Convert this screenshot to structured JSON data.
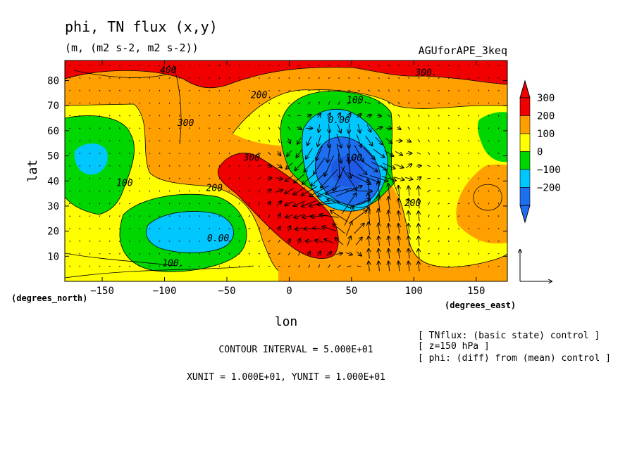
{
  "chart_data": {
    "type": "contour",
    "title": "phi, TN flux (x,y)",
    "subtitle": "(m, (m2 s-2, m2 s-2))",
    "experiment": "AGUforAPE_3keq",
    "xlabel": "lon",
    "ylabel": "lat",
    "x_unit": "(degrees_east)",
    "y_unit": "(degrees_north)",
    "xlim": [
      -180,
      175
    ],
    "ylim": [
      0,
      88
    ],
    "x_ticks": [
      -150,
      -100,
      -50,
      0,
      50,
      100,
      150
    ],
    "x_tick_labels": [
      "−150",
      "−100",
      "−50",
      "0",
      "50",
      "100",
      "150"
    ],
    "y_ticks": [
      10,
      20,
      30,
      40,
      50,
      60,
      70,
      80
    ],
    "y_tick_labels": [
      "10",
      "20",
      "30",
      "40",
      "50",
      "60",
      "70",
      "80"
    ],
    "colorbar": {
      "levels": [
        -200,
        -100,
        0,
        100,
        200,
        300
      ],
      "labels": [
        "300",
        "200",
        "100",
        "0",
        "−100",
        "−200"
      ],
      "colors": [
        "#1e6ef0",
        "#00c8ff",
        "#00d600",
        "#ffff00",
        "#ffa000",
        "#f00000"
      ],
      "extend_low_color": "#1e6ef0",
      "extend_high_color": "#f00000"
    },
    "contour_labels": [
      {
        "text": "400",
        "lon": -97,
        "lat": 83
      },
      {
        "text": "300.",
        "lon": 110,
        "lat": 82
      },
      {
        "text": "200.",
        "lon": -22,
        "lat": 73
      },
      {
        "text": "100.",
        "lon": 55,
        "lat": 71
      },
      {
        "text": "300",
        "lon": -83,
        "lat": 62
      },
      {
        "text": "0.00",
        "lon": 40,
        "lat": 63
      },
      {
        "text": "100",
        "lon": 52,
        "lat": 48
      },
      {
        "text": "300",
        "lon": -30,
        "lat": 48
      },
      {
        "text": "100",
        "lon": -132,
        "lat": 38
      },
      {
        "text": "200",
        "lon": -60,
        "lat": 36
      },
      {
        "text": "200",
        "lon": 99,
        "lat": 30
      },
      {
        "text": "0.00",
        "lon": -57,
        "lat": 16
      },
      {
        "text": "100.",
        "lon": -93,
        "lat": 6
      }
    ],
    "reference_vector": {
      "xunit": "1.000E+01",
      "yunit": "1.000E+01"
    },
    "contour_interval": "CONTOUR INTERVAL = 5.000E+01",
    "vector_units": "XUNIT = 1.000E+01, YUNIT = 1.000E+01",
    "notes": [
      "[ TNflux: (basic state) control ]",
      "[ z=150 hPa ]",
      "[ phi: (diff) from (mean) control ]"
    ]
  }
}
